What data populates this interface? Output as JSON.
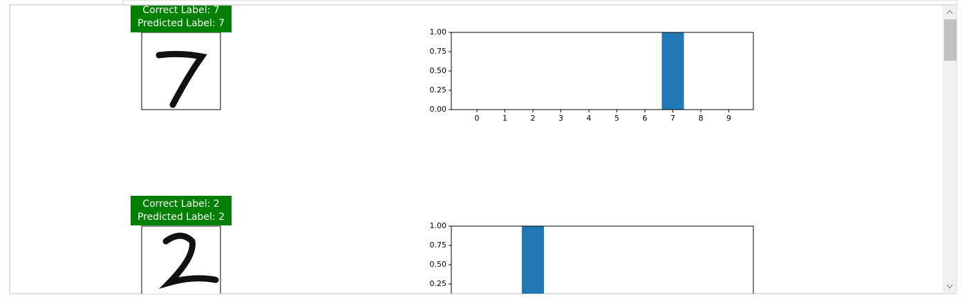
{
  "panels": [
    {
      "correct_label": "Correct Label: 7",
      "predicted_label": "Predicted Label: 7"
    },
    {
      "correct_label": "Correct Label: 2",
      "predicted_label": "Predicted Label: 2"
    }
  ],
  "chart_data": [
    {
      "type": "bar",
      "color": "#1f77b4",
      "categories": [
        "0",
        "1",
        "2",
        "3",
        "4",
        "5",
        "6",
        "7",
        "8",
        "9"
      ],
      "values": [
        0,
        0,
        0,
        0,
        0,
        0,
        0,
        1,
        0,
        0
      ],
      "ylim": [
        0,
        1
      ],
      "yticks": [
        {
          "value": 0,
          "label": "0.00"
        },
        {
          "value": 0.25,
          "label": "0.25"
        },
        {
          "value": 0.5,
          "label": "0.50"
        },
        {
          "value": 0.75,
          "label": "0.75"
        },
        {
          "value": 1,
          "label": "1.00"
        }
      ]
    },
    {
      "type": "bar",
      "color": "#1f77b4",
      "categories": [
        null,
        null,
        null,
        null,
        null,
        null,
        null,
        null,
        null,
        null
      ],
      "values": [
        0,
        0,
        1,
        0,
        0,
        0,
        0,
        0,
        0,
        0
      ],
      "ylim": [
        0,
        1
      ],
      "yticks": [
        {
          "value": 0.25,
          "label": "0.25"
        },
        {
          "value": 0.5,
          "label": "0.50"
        },
        {
          "value": 0.75,
          "label": "0.75"
        },
        {
          "value": 1,
          "label": "1.00"
        }
      ]
    }
  ]
}
